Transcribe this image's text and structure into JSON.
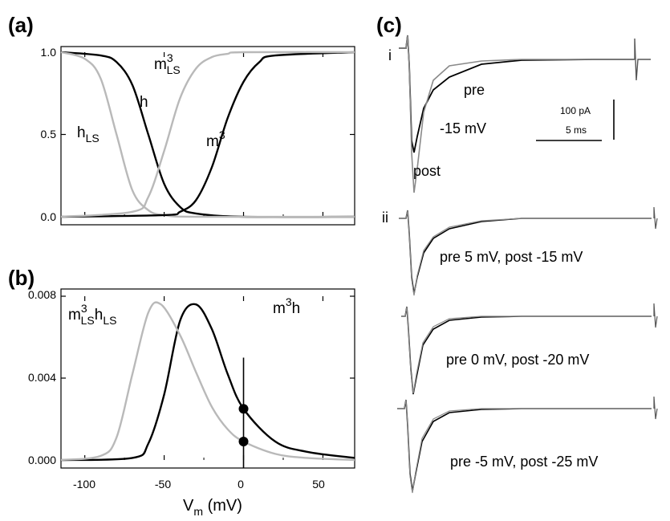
{
  "panels": {
    "a": "(a)",
    "b": "(b)",
    "c": "(c)"
  },
  "xaxis": {
    "label_main": "V",
    "label_sub": "m",
    "label_unit": " (mV)",
    "ticks": [
      "-100",
      "-50",
      "0",
      "50"
    ],
    "range": [
      -115,
      70
    ]
  },
  "panel_a": {
    "yticks": [
      "0.0",
      "0.5",
      "1.0"
    ],
    "ylim": [
      0,
      1
    ],
    "labels": {
      "h": "h",
      "hLS_main": "h",
      "hLS_sub": "LS",
      "m3_main": "m",
      "m3_sup": "3",
      "m3LS_main": "m",
      "m3LS_sup": "3",
      "m3LS_sub": "LS"
    }
  },
  "panel_b": {
    "yticks": [
      "0.000",
      "0.004",
      "0.008"
    ],
    "ylim": [
      0,
      0.008
    ],
    "labels": {
      "prod_main": "m",
      "prod_sup": "3",
      "prod_end": "h",
      "prodLS_m": "m",
      "prodLS_sup": "3",
      "prodLS_sub1": "LS",
      "prodLS_h": "h",
      "prodLS_sub2": "LS"
    },
    "marker_x": 0,
    "markers": [
      0.0025,
      0.0009
    ]
  },
  "panel_c": {
    "row_labels": [
      "i",
      "ii"
    ],
    "pre_label": "pre",
    "post_label": "post",
    "voltage_label": "-15 mV",
    "scalebar_current": "100 pA",
    "scalebar_time": "5 ms",
    "trace_captions": [
      "pre 5 mV, post -15 mV",
      "pre 0 mV, post -20 mV",
      "pre -5 mV, post -25 mV"
    ]
  },
  "chart_data": [
    {
      "type": "line",
      "panel": "(a)",
      "xlabel": "Vm (mV)",
      "xlim": [
        -115,
        70
      ],
      "ylim": [
        0,
        1
      ],
      "series": [
        {
          "name": "h",
          "color": "#000000",
          "x": [
            -115,
            -90,
            -80,
            -70,
            -60,
            -50,
            -40,
            -30,
            0,
            70
          ],
          "y": [
            1.0,
            0.98,
            0.94,
            0.8,
            0.5,
            0.2,
            0.06,
            0.02,
            0.0,
            0.0
          ]
        },
        {
          "name": "hLS",
          "color": "#b9b9b9",
          "x": [
            -115,
            -100,
            -90,
            -80,
            -70,
            -60,
            -50,
            -30,
            70
          ],
          "y": [
            1.0,
            0.96,
            0.84,
            0.5,
            0.16,
            0.04,
            0.01,
            0.0,
            0.0
          ]
        },
        {
          "name": "m3",
          "color": "#000000",
          "x": [
            -115,
            -50,
            -40,
            -30,
            -20,
            -10,
            0,
            10,
            20,
            70
          ],
          "y": [
            0.0,
            0.01,
            0.03,
            0.1,
            0.3,
            0.6,
            0.82,
            0.94,
            0.98,
            1.0
          ]
        },
        {
          "name": "m3LS",
          "color": "#b9b9b9",
          "x": [
            -115,
            -70,
            -60,
            -50,
            -40,
            -30,
            -20,
            -10,
            0,
            70
          ],
          "y": [
            0.0,
            0.03,
            0.12,
            0.4,
            0.72,
            0.9,
            0.97,
            0.99,
            1.0,
            1.0
          ]
        }
      ]
    },
    {
      "type": "line",
      "panel": "(b)",
      "xlabel": "Vm (mV)",
      "xlim": [
        -115,
        70
      ],
      "ylim": [
        0,
        0.008
      ],
      "series": [
        {
          "name": "m3h",
          "color": "#000000",
          "x": [
            -115,
            -70,
            -60,
            -50,
            -40,
            -30,
            -20,
            -10,
            0,
            20,
            40,
            70
          ],
          "y": [
            0.0,
            0.0001,
            0.0008,
            0.0032,
            0.0068,
            0.0076,
            0.0064,
            0.0042,
            0.0025,
            0.0009,
            0.0004,
            0.0001
          ]
        },
        {
          "name": "m3LShLS",
          "color": "#b9b9b9",
          "x": [
            -115,
            -90,
            -80,
            -70,
            -60,
            -52,
            -40,
            -30,
            -20,
            -10,
            0,
            20,
            40,
            70
          ],
          "y": [
            0.0,
            0.0002,
            0.0011,
            0.0042,
            0.0072,
            0.0076,
            0.0061,
            0.0043,
            0.0026,
            0.0015,
            0.0009,
            0.0003,
            0.0001,
            0.0
          ]
        }
      ],
      "markers": [
        {
          "x": 0,
          "y": 0.0025
        },
        {
          "x": 0,
          "y": 0.0009
        }
      ]
    }
  ]
}
